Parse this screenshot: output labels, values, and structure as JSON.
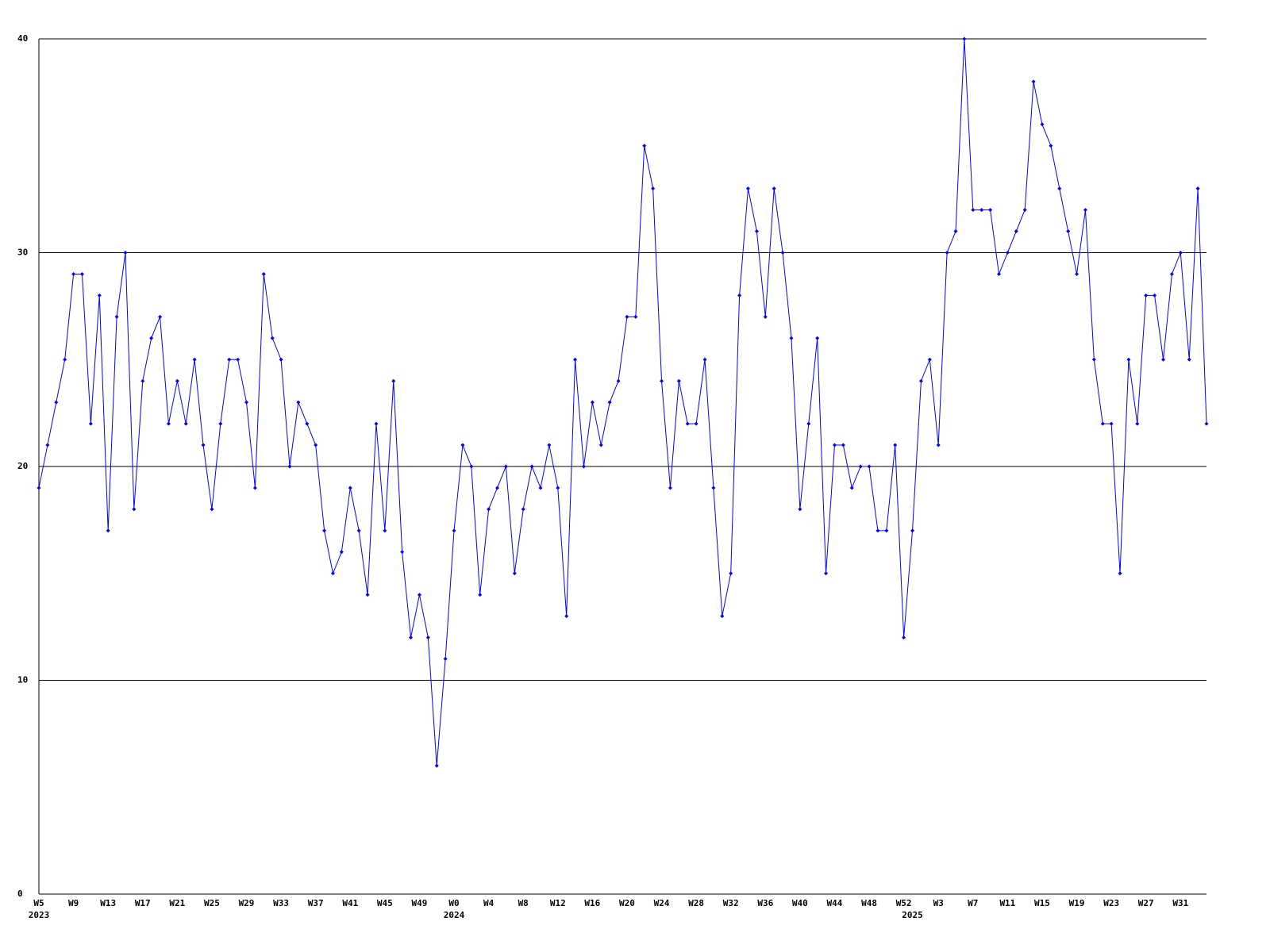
{
  "chart_data": {
    "type": "line",
    "categories": [
      "W5",
      null,
      null,
      null,
      "W9",
      null,
      null,
      null,
      "W13",
      null,
      null,
      null,
      "W17",
      null,
      null,
      null,
      "W21",
      null,
      null,
      null,
      "W25",
      null,
      null,
      null,
      "W29",
      null,
      null,
      null,
      "W33",
      null,
      null,
      null,
      "W37",
      null,
      null,
      null,
      "W41",
      null,
      null,
      null,
      "W45",
      null,
      null,
      null,
      "W49",
      null,
      null,
      null,
      "W0",
      null,
      null,
      null,
      "W4",
      null,
      null,
      null,
      "W8",
      null,
      null,
      null,
      "W12",
      null,
      null,
      null,
      "W16",
      null,
      null,
      null,
      "W20",
      null,
      null,
      null,
      "W24",
      null,
      null,
      null,
      "W28",
      null,
      null,
      null,
      "W32",
      null,
      null,
      null,
      "W36",
      null,
      null,
      null,
      "W40",
      null,
      null,
      null,
      "W44",
      null,
      null,
      null,
      "W48",
      null,
      null,
      null,
      "W52",
      null,
      null,
      null,
      "W3",
      null,
      null,
      null,
      "W7",
      null,
      null,
      null,
      "W11",
      null,
      null,
      null,
      "W15",
      null,
      null,
      null,
      "W19",
      null,
      null,
      null,
      "W23",
      null,
      null,
      null,
      "W27",
      null,
      null,
      null,
      "W31",
      null,
      null,
      null
    ],
    "year_labels": [
      {
        "index": 0,
        "label": "2023"
      },
      {
        "index": 48,
        "label": "2024"
      },
      {
        "index": 101,
        "label": "2025"
      }
    ],
    "values": [
      19,
      21,
      23,
      25,
      29,
      29,
      22,
      28,
      17,
      27,
      30,
      18,
      24,
      26,
      27,
      22,
      24,
      22,
      25,
      21,
      18,
      22,
      25,
      25,
      23,
      19,
      29,
      26,
      25,
      20,
      23,
      22,
      21,
      17,
      15,
      16,
      19,
      17,
      14,
      22,
      17,
      24,
      16,
      12,
      14,
      12,
      6,
      11,
      17,
      21,
      20,
      14,
      18,
      19,
      20,
      15,
      18,
      20,
      19,
      21,
      19,
      13,
      25,
      20,
      23,
      21,
      23,
      24,
      27,
      27,
      35,
      33,
      24,
      19,
      24,
      22,
      22,
      25,
      19,
      13,
      15,
      28,
      33,
      31,
      27,
      33,
      30,
      26,
      18,
      22,
      26,
      15,
      21,
      21,
      19,
      20,
      20,
      17,
      17,
      21,
      12,
      17,
      24,
      25,
      21,
      30,
      31,
      40,
      32,
      32,
      32,
      29,
      30,
      31,
      32,
      38,
      36,
      35,
      33,
      31,
      29,
      32,
      25,
      22,
      22,
      15,
      25,
      22,
      28,
      28,
      25,
      29,
      30,
      25,
      33,
      22
    ],
    "color": "#0000ff",
    "ylim": [
      0,
      40
    ],
    "yticks": [
      0,
      10,
      20,
      30,
      40
    ],
    "grid": true
  }
}
